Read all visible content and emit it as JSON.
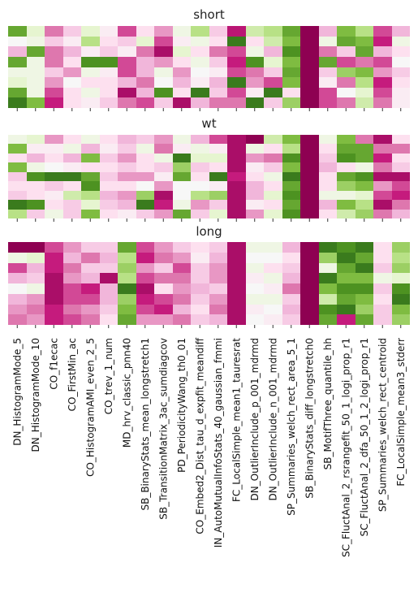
{
  "chart_data": {
    "type": "heatmap",
    "colormap": "PiYG",
    "colormap_stops": [
      "#8e0152",
      "#c51b7d",
      "#de77ae",
      "#f1b6da",
      "#fde0ef",
      "#f7f7f7",
      "#e6f5d0",
      "#b8e186",
      "#7fbc41",
      "#4d9221",
      "#276419"
    ],
    "value_range": [
      0,
      1
    ],
    "colorbar": false,
    "shared_x": true,
    "features": [
      "DN_HistogramMode_5",
      "DN_HistogramMode_10",
      "CO_f1ecac",
      "CO_FirstMin_ac",
      "CO_HistogramAMI_even_2_5",
      "CO_trev_1_num",
      "MD_hrv_classic_pnn40",
      "SB_BinaryStats_mean_longstretch1",
      "SB_TransitionMatrix_3ac_sumdiagcov",
      "PD_PeriodicityWang_th0_01",
      "CO_Embed2_Dist_tau_d_expfit_meandiff",
      "IN_AutoMutualInfoStats_40_gaussian_fmmi",
      "FC_LocalSimple_mean1_tauresrat",
      "DN_OutlierInclude_p_001_mdrmd",
      "DN_OutlierInclude_n_001_mdrmd",
      "SP_Summaries_welch_rect_area_5_1",
      "SB_BinaryStats_diff_longstretch0",
      "SB_MotifThree_quantile_hh",
      "SC_FluctAnal_2_rsrangefit_50_1_logi_prop_r1",
      "SC_FluctAnal_2_dfa_50_1_2_logi_prop_r1",
      "SP_Summaries_welch_rect_centroid",
      "FC_LocalSimple_mean3_stderr"
    ],
    "panels": [
      {
        "title": "short",
        "values": [
          [
            0.85,
            0.6,
            0.2,
            0.35,
            0.6,
            0.45,
            0.15,
            0.4,
            0.25,
            0.55,
            0.7,
            0.35,
            0.08,
            0.65,
            0.7,
            0.85,
            0.0,
            0.3,
            0.8,
            0.7,
            0.15,
            0.3
          ],
          [
            0.5,
            0.55,
            0.35,
            0.45,
            0.7,
            0.4,
            0.35,
            0.6,
            0.15,
            0.45,
            0.55,
            0.4,
            0.95,
            0.4,
            0.65,
            0.8,
            0.0,
            0.55,
            0.85,
            0.8,
            0.1,
            0.55
          ],
          [
            0.3,
            0.85,
            0.2,
            0.3,
            0.45,
            0.35,
            0.45,
            0.2,
            0.05,
            0.6,
            0.4,
            0.2,
            0.15,
            0.55,
            0.3,
            0.9,
            0.0,
            0.2,
            0.35,
            0.85,
            0.3,
            0.4
          ],
          [
            0.85,
            0.55,
            0.2,
            0.4,
            0.9,
            0.9,
            0.15,
            0.3,
            0.25,
            0.4,
            0.55,
            0.35,
            0.1,
            0.9,
            0.6,
            0.8,
            0.0,
            0.85,
            0.15,
            0.2,
            0.15,
            0.5
          ],
          [
            0.55,
            0.55,
            0.35,
            0.25,
            0.55,
            0.45,
            0.15,
            0.3,
            0.55,
            0.25,
            0.5,
            0.45,
            0.15,
            0.2,
            0.35,
            0.85,
            0.0,
            0.35,
            0.75,
            0.8,
            0.25,
            0.35
          ],
          [
            0.6,
            0.55,
            0.25,
            0.5,
            0.4,
            0.4,
            0.3,
            0.2,
            0.5,
            0.3,
            0.45,
            0.3,
            0.95,
            0.25,
            0.15,
            0.8,
            0.0,
            0.45,
            0.2,
            0.7,
            0.1,
            0.4
          ],
          [
            0.85,
            0.55,
            0.15,
            0.4,
            0.55,
            0.4,
            0.05,
            0.3,
            0.9,
            0.4,
            0.95,
            0.35,
            0.15,
            0.45,
            0.95,
            0.4,
            0.0,
            0.15,
            0.5,
            0.6,
            0.15,
            0.45
          ],
          [
            0.95,
            0.8,
            0.1,
            0.4,
            0.45,
            0.35,
            0.2,
            0.15,
            0.35,
            0.05,
            0.3,
            0.2,
            0.2,
            0.95,
            0.35,
            0.75,
            0.0,
            0.15,
            0.2,
            0.65,
            0.2,
            0.45
          ]
        ]
      },
      {
        "title": "wt",
        "values": [
          [
            0.55,
            0.6,
            0.25,
            0.4,
            0.55,
            0.4,
            0.3,
            0.35,
            0.25,
            0.55,
            0.3,
            0.15,
            0.05,
            0.0,
            0.65,
            0.8,
            0.0,
            0.55,
            0.8,
            0.2,
            0.05,
            0.4
          ],
          [
            0.8,
            0.45,
            0.45,
            0.55,
            0.3,
            0.45,
            0.35,
            0.55,
            0.2,
            0.45,
            0.55,
            0.45,
            0.05,
            0.55,
            0.4,
            0.7,
            0.0,
            0.4,
            0.85,
            0.85,
            0.2,
            0.2
          ],
          [
            0.4,
            0.3,
            0.4,
            0.3,
            0.8,
            0.35,
            0.25,
            0.4,
            0.55,
            0.95,
            0.6,
            0.6,
            0.05,
            0.25,
            0.2,
            0.9,
            0.0,
            0.35,
            0.9,
            0.85,
            0.1,
            0.4
          ],
          [
            0.8,
            0.55,
            0.5,
            0.45,
            0.4,
            0.4,
            0.35,
            0.4,
            0.35,
            0.75,
            0.35,
            0.4,
            0.05,
            0.45,
            0.35,
            0.8,
            0.0,
            0.3,
            0.4,
            0.55,
            0.2,
            0.35
          ],
          [
            0.35,
            0.9,
            0.95,
            0.95,
            0.85,
            0.35,
            0.25,
            0.25,
            0.45,
            0.85,
            0.4,
            0.95,
            0.1,
            0.4,
            0.55,
            0.95,
            0.0,
            0.4,
            0.85,
            0.9,
            0.05,
            0.05
          ],
          [
            0.4,
            0.4,
            0.35,
            0.4,
            0.9,
            0.4,
            0.4,
            0.5,
            0.25,
            0.5,
            0.5,
            0.45,
            0.05,
            0.3,
            0.4,
            0.85,
            0.0,
            0.4,
            0.75,
            0.8,
            0.25,
            0.15
          ],
          [
            0.35,
            0.4,
            0.45,
            0.65,
            0.7,
            0.3,
            0.25,
            0.75,
            0.05,
            0.5,
            0.7,
            0.75,
            0.05,
            0.3,
            0.6,
            0.9,
            0.0,
            0.55,
            0.55,
            0.6,
            0.15,
            0.1
          ],
          [
            0.95,
            0.9,
            0.4,
            0.35,
            0.6,
            0.35,
            0.3,
            0.95,
            0.1,
            0.55,
            0.25,
            0.35,
            0.05,
            0.45,
            0.4,
            0.85,
            0.0,
            0.3,
            0.8,
            0.7,
            0.05,
            0.2
          ],
          [
            0.7,
            0.35,
            0.55,
            0.35,
            0.8,
            0.4,
            0.45,
            0.35,
            0.25,
            0.85,
            0.35,
            0.6,
            0.05,
            0.25,
            0.6,
            0.9,
            0.0,
            0.4,
            0.65,
            0.75,
            0.2,
            0.3
          ]
        ]
      },
      {
        "title": "long",
        "values": [
          [
            0.0,
            0.0,
            0.15,
            0.25,
            0.35,
            0.35,
            0.85,
            0.15,
            0.25,
            0.35,
            0.4,
            0.35,
            0.05,
            0.55,
            0.55,
            0.3,
            0.0,
            0.95,
            0.9,
            0.95,
            0.4,
            0.75
          ],
          [
            0.55,
            0.6,
            0.1,
            0.3,
            0.2,
            0.3,
            0.7,
            0.1,
            0.2,
            0.25,
            0.45,
            0.3,
            0.05,
            0.5,
            0.5,
            0.4,
            0.0,
            0.75,
            0.95,
            0.85,
            0.4,
            0.7
          ],
          [
            0.15,
            0.3,
            0.1,
            0.2,
            0.35,
            0.35,
            0.75,
            0.25,
            0.35,
            0.15,
            0.35,
            0.25,
            0.05,
            0.55,
            0.4,
            0.35,
            0.0,
            0.55,
            0.85,
            0.95,
            0.35,
            0.75
          ],
          [
            0.3,
            0.35,
            0.05,
            0.25,
            0.3,
            0.05,
            0.7,
            0.15,
            0.2,
            0.2,
            0.35,
            0.25,
            0.05,
            0.45,
            0.55,
            0.3,
            0.0,
            0.95,
            0.8,
            0.8,
            0.55,
            0.6
          ],
          [
            0.5,
            0.55,
            0.05,
            0.15,
            0.1,
            0.3,
            0.95,
            0.05,
            0.4,
            0.25,
            0.3,
            0.35,
            0.05,
            0.5,
            0.45,
            0.2,
            0.0,
            0.8,
            0.9,
            0.9,
            0.35,
            0.9
          ],
          [
            0.3,
            0.25,
            0.05,
            0.15,
            0.15,
            0.3,
            0.75,
            0.1,
            0.15,
            0.2,
            0.35,
            0.25,
            0.05,
            0.55,
            0.55,
            0.35,
            0.0,
            0.65,
            0.85,
            0.8,
            0.4,
            0.95
          ],
          [
            0.25,
            0.2,
            0.1,
            0.2,
            0.25,
            0.35,
            0.8,
            0.15,
            0.1,
            0.3,
            0.4,
            0.2,
            0.05,
            0.45,
            0.5,
            0.3,
            0.0,
            0.9,
            0.95,
            0.75,
            0.35,
            0.8
          ],
          [
            0.2,
            0.25,
            0.1,
            0.15,
            0.2,
            0.4,
            0.85,
            0.25,
            0.25,
            0.2,
            0.35,
            0.3,
            0.05,
            0.5,
            0.45,
            0.35,
            0.0,
            0.85,
            0.1,
            0.85,
            0.35,
            0.75
          ]
        ]
      }
    ]
  }
}
